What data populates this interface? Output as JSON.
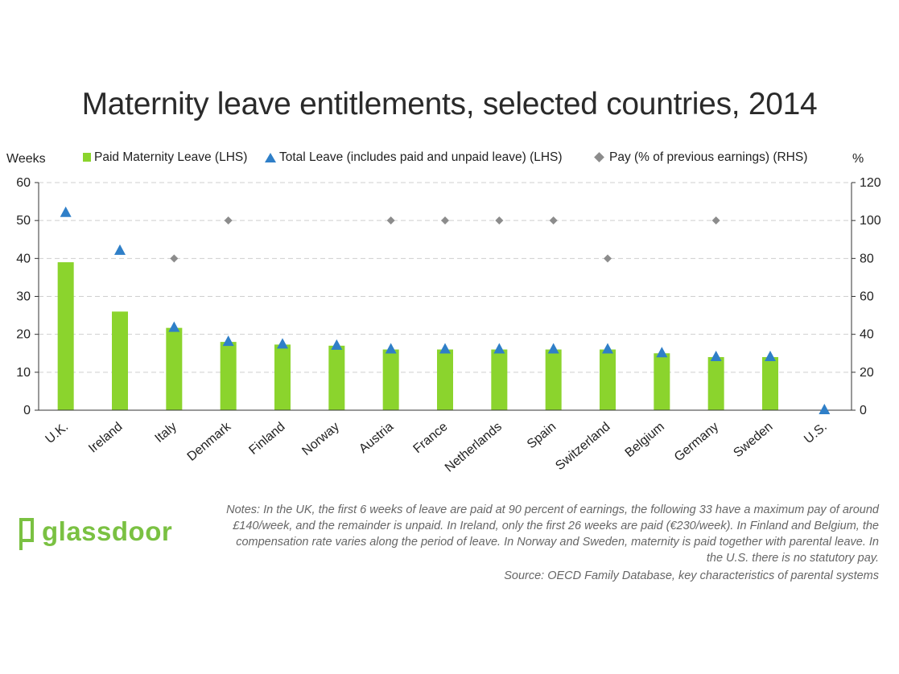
{
  "title": "Maternity leave entitlements, selected countries, 2014",
  "left_axis_unit": "Weeks",
  "right_axis_unit": "%",
  "legend": {
    "paid": "Paid Maternity Leave (LHS)",
    "total": "Total Leave (includes paid and unpaid leave) (LHS)",
    "pay": "Pay (% of previous earnings) (RHS)"
  },
  "notes": "Notes: In the UK, the first 6 weeks of leave are paid at 90 percent of earnings, the following 33 have a maximum pay of around £140/week, and the remainder is unpaid. In Ireland, only the first 26 weeks are paid (€230/week). In Finland and Belgium, the compensation rate varies along the period of leave. In Norway and Sweden, maternity is paid together with parental leave. In the U.S. there is no statutory pay.",
  "source": "Source: OECD Family Database, key characteristics of parental systems",
  "logo_text": "glassdoor",
  "colors": {
    "paid": "#8bd42d",
    "total": "#2f7fc8",
    "pay": "#8c8c8c",
    "brand": "#7ac142"
  },
  "chart_data": {
    "type": "bar",
    "categories": [
      "U.K.",
      "Ireland",
      "Italy",
      "Denmark",
      "Finland",
      "Norway",
      "Austria",
      "France",
      "Netherlands",
      "Spain",
      "Switzerland",
      "Belgium",
      "Germany",
      "Sweden",
      "U.S."
    ],
    "series": [
      {
        "name": "Paid Maternity Leave (LHS)",
        "type": "bar",
        "axis": "left",
        "values": [
          39,
          26,
          21.7,
          18,
          17.3,
          17,
          16,
          16,
          16,
          16,
          16,
          15,
          14,
          14,
          0
        ]
      },
      {
        "name": "Total Leave (includes paid and unpaid leave) (LHS)",
        "type": "scatter",
        "marker": "triangle",
        "axis": "left",
        "values": [
          52,
          42,
          21.7,
          18,
          17.3,
          17,
          16,
          16,
          16,
          16,
          16,
          15,
          14,
          14,
          0
        ]
      },
      {
        "name": "Pay (% of previous earnings) (RHS)",
        "type": "scatter",
        "marker": "diamond",
        "axis": "right",
        "values": [
          null,
          null,
          80,
          100,
          null,
          null,
          100,
          100,
          100,
          100,
          80,
          null,
          100,
          null,
          null
        ]
      }
    ],
    "left_axis": {
      "label": "Weeks",
      "ylim": [
        0,
        60
      ],
      "ticks": [
        0,
        10,
        20,
        30,
        40,
        50,
        60
      ]
    },
    "right_axis": {
      "label": "%",
      "ylim": [
        0,
        120
      ],
      "ticks": [
        0,
        20,
        40,
        60,
        80,
        100,
        120
      ]
    },
    "grid": "horizontal dashed",
    "legend_position": "top"
  }
}
